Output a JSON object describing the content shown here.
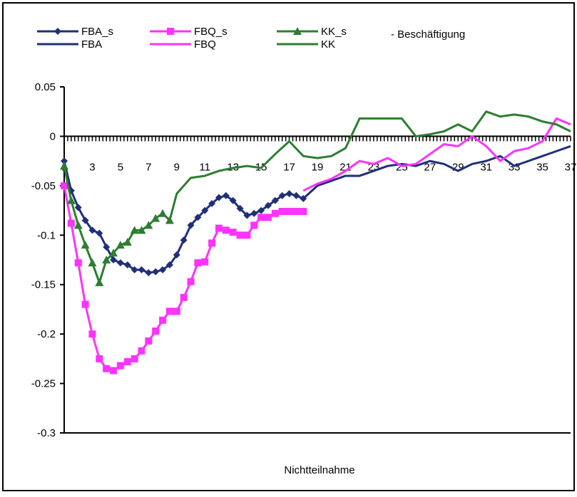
{
  "chart_data": {
    "type": "line",
    "xlabel": "Nichtteilnahme",
    "ylabel": "",
    "ylim": [
      -0.3,
      0.05
    ],
    "yticks": [
      0.05,
      0,
      -0.05,
      -0.1,
      -0.15,
      -0.2,
      -0.25,
      -0.3
    ],
    "ytick_labels": [
      "0.05",
      "0",
      "-0.05",
      "-0.1",
      "-0.15",
      "-0.2",
      "-0.25",
      "-0.3"
    ],
    "xlim": [
      1,
      37
    ],
    "xtick_labels": [
      "1",
      "3",
      "5",
      "7",
      "9",
      "11",
      "13",
      "15",
      "17",
      "19",
      "21",
      "23",
      "25",
      "27",
      "29",
      "31",
      "33",
      "35",
      "37"
    ],
    "legend": {
      "placement": "top",
      "entries": [
        {
          "label": "FBA_s",
          "color": "#1f2f7a",
          "marker": "diamond"
        },
        {
          "label": "FBQ_s",
          "color": "#ff33ff",
          "marker": "square"
        },
        {
          "label": "KK_s",
          "color": "#2e7d32",
          "marker": "triangle"
        },
        {
          "label": "FBA",
          "color": "#1f2f7a",
          "marker": "none"
        },
        {
          "label": "FBQ",
          "color": "#ff33ff",
          "marker": "none"
        },
        {
          "label": "KK",
          "color": "#2e7d32",
          "marker": "none"
        },
        {
          "label": "- Beschäftigung",
          "color": "#000000",
          "marker": "text"
        }
      ]
    },
    "series": [
      {
        "name": "FBA_s",
        "color": "#1f2f7a",
        "marker": "diamond",
        "x": [
          1,
          1.5,
          2,
          2.5,
          3,
          3.5,
          4,
          4.5,
          5,
          5.5,
          6,
          6.5,
          7,
          7.5,
          8,
          8.5,
          9,
          9.5,
          10,
          10.5,
          11,
          11.5,
          12,
          12.5,
          13,
          13.5,
          14,
          14.5,
          15,
          15.5,
          16,
          16.5,
          17,
          17.5,
          18
        ],
        "values": [
          -0.025,
          -0.055,
          -0.072,
          -0.085,
          -0.095,
          -0.098,
          -0.112,
          -0.125,
          -0.128,
          -0.13,
          -0.135,
          -0.135,
          -0.138,
          -0.137,
          -0.135,
          -0.13,
          -0.12,
          -0.105,
          -0.09,
          -0.082,
          -0.075,
          -0.068,
          -0.062,
          -0.06,
          -0.065,
          -0.073,
          -0.08,
          -0.078,
          -0.075,
          -0.07,
          -0.065,
          -0.06,
          -0.058,
          -0.06,
          -0.063
        ]
      },
      {
        "name": "FBQ_s",
        "color": "#ff33ff",
        "marker": "square",
        "x": [
          1,
          1.5,
          2,
          2.5,
          3,
          3.5,
          4,
          4.5,
          5,
          5.5,
          6,
          6.5,
          7,
          7.5,
          8,
          8.5,
          9,
          9.5,
          10,
          10.5,
          11,
          11.5,
          12,
          12.5,
          13,
          13.5,
          14,
          14.5,
          15,
          15.5,
          16,
          16.5,
          17,
          17.5,
          18
        ],
        "values": [
          -0.05,
          -0.088,
          -0.128,
          -0.17,
          -0.2,
          -0.225,
          -0.235,
          -0.237,
          -0.232,
          -0.228,
          -0.225,
          -0.217,
          -0.207,
          -0.197,
          -0.186,
          -0.177,
          -0.177,
          -0.163,
          -0.147,
          -0.128,
          -0.127,
          -0.108,
          -0.093,
          -0.095,
          -0.097,
          -0.1,
          -0.1,
          -0.09,
          -0.082,
          -0.082,
          -0.078,
          -0.076,
          -0.076,
          -0.076,
          -0.076
        ]
      },
      {
        "name": "KK_s",
        "color": "#2e7d32",
        "marker": "triangle",
        "x": [
          1,
          1.5,
          2,
          2.5,
          3,
          3.5,
          4,
          4.5,
          5,
          5.5,
          6,
          6.5,
          7,
          7.5,
          8,
          8.5
        ],
        "values": [
          -0.03,
          -0.065,
          -0.09,
          -0.11,
          -0.128,
          -0.148,
          -0.125,
          -0.118,
          -0.11,
          -0.107,
          -0.095,
          -0.095,
          -0.09,
          -0.083,
          -0.078,
          -0.085
        ]
      },
      {
        "name": "FBA",
        "color": "#1f2f7a",
        "marker": "none",
        "x": [
          18,
          19,
          20,
          21,
          22,
          23,
          24,
          25,
          26,
          27,
          28,
          29,
          30,
          31,
          32,
          33,
          34,
          35,
          36,
          37
        ],
        "values": [
          -0.063,
          -0.05,
          -0.045,
          -0.04,
          -0.04,
          -0.035,
          -0.03,
          -0.028,
          -0.03,
          -0.025,
          -0.028,
          -0.035,
          -0.028,
          -0.025,
          -0.02,
          -0.03,
          -0.025,
          -0.02,
          -0.015,
          -0.01
        ]
      },
      {
        "name": "FBQ",
        "color": "#ff33ff",
        "marker": "none",
        "x": [
          18,
          19,
          20,
          21,
          22,
          23,
          24,
          25,
          26,
          27,
          28,
          29,
          30,
          31,
          32,
          33,
          34,
          35,
          36,
          37
        ],
        "values": [
          -0.055,
          -0.048,
          -0.043,
          -0.035,
          -0.025,
          -0.028,
          -0.022,
          -0.03,
          -0.028,
          -0.018,
          -0.008,
          -0.01,
          0.0,
          -0.01,
          -0.025,
          -0.015,
          -0.012,
          -0.005,
          0.018,
          0.012
        ]
      },
      {
        "name": "KK",
        "color": "#2e7d32",
        "marker": "none",
        "x": [
          8.5,
          9,
          10,
          11,
          12,
          13,
          14,
          15,
          16,
          17,
          18,
          19,
          20,
          21,
          22,
          23,
          24,
          25,
          26,
          27,
          28,
          29,
          30,
          31,
          32,
          33,
          34,
          35,
          36,
          37
        ],
        "values": [
          -0.085,
          -0.058,
          -0.042,
          -0.04,
          -0.035,
          -0.032,
          -0.03,
          -0.032,
          -0.018,
          -0.005,
          -0.02,
          -0.022,
          -0.02,
          -0.012,
          0.018,
          0.018,
          0.018,
          0.018,
          0.0,
          0.002,
          0.005,
          0.012,
          0.005,
          0.025,
          0.02,
          0.022,
          0.02,
          0.015,
          0.012,
          0.005
        ]
      }
    ]
  }
}
